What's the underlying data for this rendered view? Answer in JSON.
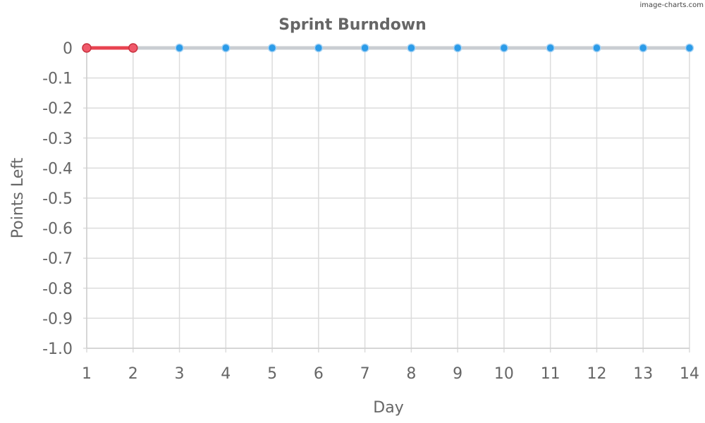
{
  "watermark": "image-charts.com",
  "chart_data": {
    "type": "line",
    "title": "Sprint Burndown",
    "xlabel": "Day",
    "ylabel": "Points Left",
    "x": [
      1,
      2,
      3,
      4,
      5,
      6,
      7,
      8,
      9,
      10,
      11,
      12,
      13,
      14
    ],
    "x_ticks": [
      "1",
      "2",
      "3",
      "4",
      "5",
      "6",
      "7",
      "8",
      "9",
      "10",
      "11",
      "12",
      "13",
      "14"
    ],
    "y_ticks": [
      "0",
      "-0.1",
      "-0.2",
      "-0.3",
      "-0.4",
      "-0.5",
      "-0.6",
      "-0.7",
      "-0.8",
      "-0.9",
      "-1.0"
    ],
    "y_tick_values": [
      0,
      -0.1,
      -0.2,
      -0.3,
      -0.4,
      -0.5,
      -0.6,
      -0.7,
      -0.8,
      -0.9,
      -1.0
    ],
    "xlim": [
      1,
      14
    ],
    "ylim": [
      -1.0,
      0
    ],
    "grid": true,
    "series": [
      {
        "x": [
          1,
          2,
          3,
          4,
          5,
          6,
          7,
          8,
          9,
          10,
          11,
          12,
          13,
          14
        ],
        "values": [
          0,
          0,
          0,
          0,
          0,
          0,
          0,
          0,
          0,
          0,
          0,
          0,
          0,
          0
        ],
        "line_color": "#c9cdd2",
        "marker_color": "#2b9be8",
        "marker_stroke": "#a9d4f5"
      },
      {
        "x": [
          1,
          2
        ],
        "values": [
          0,
          0
        ],
        "line_color": "#e84350",
        "marker_color": "#f0596a",
        "marker_stroke": "#c8323f"
      }
    ]
  }
}
